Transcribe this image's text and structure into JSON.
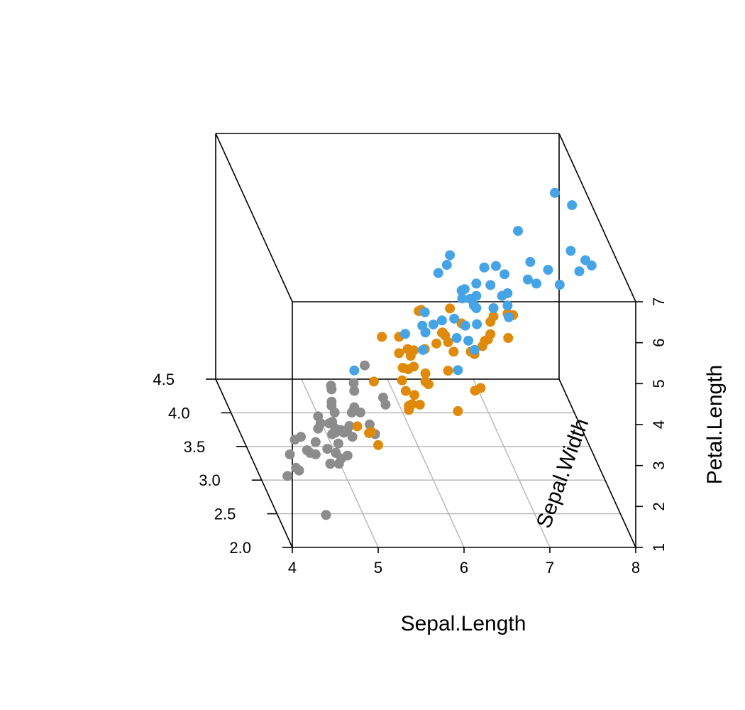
{
  "chart_data": {
    "type": "scatter",
    "projection": "3d",
    "x_label": "Sepal.Length",
    "y_label": "Sepal.Width",
    "z_label": "Petal.Length",
    "xlim": [
      4,
      8
    ],
    "ylim": [
      2.0,
      4.5
    ],
    "zlim": [
      1,
      7
    ],
    "x_ticks": [
      "4",
      "5",
      "6",
      "7",
      "8"
    ],
    "y_ticks": [
      "2.0",
      "2.5",
      "3.0",
      "3.5",
      "4.0",
      "4.5"
    ],
    "z_ticks": [
      "1",
      "2",
      "3",
      "4",
      "5",
      "6",
      "7"
    ],
    "grid": "floor",
    "series": [
      {
        "color": "#8c8c8c",
        "points": [
          {
            "x": 5.1,
            "y": 3.5,
            "z": 1.4
          },
          {
            "x": 4.9,
            "y": 3.0,
            "z": 1.4
          },
          {
            "x": 4.7,
            "y": 3.2,
            "z": 1.3
          },
          {
            "x": 4.6,
            "y": 3.1,
            "z": 1.5
          },
          {
            "x": 5.0,
            "y": 3.6,
            "z": 1.4
          },
          {
            "x": 5.4,
            "y": 3.9,
            "z": 1.7
          },
          {
            "x": 4.6,
            "y": 3.4,
            "z": 1.4
          },
          {
            "x": 5.0,
            "y": 3.4,
            "z": 1.5
          },
          {
            "x": 4.4,
            "y": 2.9,
            "z": 1.4
          },
          {
            "x": 4.9,
            "y": 3.1,
            "z": 1.5
          },
          {
            "x": 5.4,
            "y": 3.7,
            "z": 1.5
          },
          {
            "x": 4.8,
            "y": 3.4,
            "z": 1.6
          },
          {
            "x": 4.8,
            "y": 3.0,
            "z": 1.4
          },
          {
            "x": 4.3,
            "y": 3.0,
            "z": 1.1
          },
          {
            "x": 5.8,
            "y": 4.0,
            "z": 1.2
          },
          {
            "x": 5.7,
            "y": 4.4,
            "z": 1.5
          },
          {
            "x": 5.4,
            "y": 3.9,
            "z": 1.3
          },
          {
            "x": 5.1,
            "y": 3.5,
            "z": 1.4
          },
          {
            "x": 5.7,
            "y": 3.8,
            "z": 1.7
          },
          {
            "x": 5.1,
            "y": 3.8,
            "z": 1.5
          },
          {
            "x": 5.4,
            "y": 3.4,
            "z": 1.7
          },
          {
            "x": 5.1,
            "y": 3.7,
            "z": 1.5
          },
          {
            "x": 4.6,
            "y": 3.6,
            "z": 1.0
          },
          {
            "x": 5.1,
            "y": 3.3,
            "z": 1.7
          },
          {
            "x": 4.8,
            "y": 3.4,
            "z": 1.9
          },
          {
            "x": 5.0,
            "y": 3.0,
            "z": 1.6
          },
          {
            "x": 5.0,
            "y": 3.4,
            "z": 1.6
          },
          {
            "x": 5.2,
            "y": 3.5,
            "z": 1.5
          },
          {
            "x": 5.2,
            "y": 3.4,
            "z": 1.4
          },
          {
            "x": 4.7,
            "y": 3.2,
            "z": 1.6
          },
          {
            "x": 4.8,
            "y": 3.1,
            "z": 1.6
          },
          {
            "x": 5.4,
            "y": 3.4,
            "z": 1.5
          },
          {
            "x": 5.2,
            "y": 4.1,
            "z": 1.5
          },
          {
            "x": 5.5,
            "y": 4.2,
            "z": 1.4
          },
          {
            "x": 4.9,
            "y": 3.1,
            "z": 1.5
          },
          {
            "x": 5.0,
            "y": 3.2,
            "z": 1.2
          },
          {
            "x": 5.5,
            "y": 3.5,
            "z": 1.3
          },
          {
            "x": 4.9,
            "y": 3.6,
            "z": 1.4
          },
          {
            "x": 4.4,
            "y": 3.0,
            "z": 1.3
          },
          {
            "x": 5.1,
            "y": 3.4,
            "z": 1.5
          },
          {
            "x": 5.0,
            "y": 3.5,
            "z": 1.3
          },
          {
            "x": 4.5,
            "y": 2.3,
            "z": 1.3
          },
          {
            "x": 4.4,
            "y": 3.2,
            "z": 1.3
          },
          {
            "x": 5.0,
            "y": 3.5,
            "z": 1.6
          },
          {
            "x": 5.1,
            "y": 3.8,
            "z": 1.9
          },
          {
            "x": 4.8,
            "y": 3.0,
            "z": 1.4
          },
          {
            "x": 5.1,
            "y": 3.8,
            "z": 1.6
          },
          {
            "x": 4.6,
            "y": 3.2,
            "z": 1.4
          },
          {
            "x": 5.3,
            "y": 3.7,
            "z": 1.5
          },
          {
            "x": 5.0,
            "y": 3.3,
            "z": 1.4
          }
        ]
      },
      {
        "color": "#e08a0b",
        "points": [
          {
            "x": 7.0,
            "y": 3.2,
            "z": 4.7
          },
          {
            "x": 6.4,
            "y": 3.2,
            "z": 4.5
          },
          {
            "x": 6.9,
            "y": 3.1,
            "z": 4.9
          },
          {
            "x": 5.5,
            "y": 2.3,
            "z": 4.0
          },
          {
            "x": 6.5,
            "y": 2.8,
            "z": 4.6
          },
          {
            "x": 5.7,
            "y": 2.8,
            "z": 4.5
          },
          {
            "x": 6.3,
            "y": 3.3,
            "z": 4.7
          },
          {
            "x": 4.9,
            "y": 2.4,
            "z": 3.3
          },
          {
            "x": 6.6,
            "y": 2.9,
            "z": 4.6
          },
          {
            "x": 5.2,
            "y": 2.7,
            "z": 3.9
          },
          {
            "x": 5.0,
            "y": 2.0,
            "z": 3.5
          },
          {
            "x": 5.9,
            "y": 3.0,
            "z": 4.2
          },
          {
            "x": 6.0,
            "y": 2.2,
            "z": 4.0
          },
          {
            "x": 6.1,
            "y": 2.9,
            "z": 4.7
          },
          {
            "x": 5.6,
            "y": 2.9,
            "z": 3.6
          },
          {
            "x": 6.7,
            "y": 3.1,
            "z": 4.4
          },
          {
            "x": 5.6,
            "y": 3.0,
            "z": 4.5
          },
          {
            "x": 5.8,
            "y": 2.7,
            "z": 4.1
          },
          {
            "x": 6.2,
            "y": 2.2,
            "z": 4.5
          },
          {
            "x": 5.6,
            "y": 2.5,
            "z": 3.9
          },
          {
            "x": 5.9,
            "y": 3.2,
            "z": 4.8
          },
          {
            "x": 6.1,
            "y": 2.8,
            "z": 4.0
          },
          {
            "x": 6.3,
            "y": 2.5,
            "z": 4.9
          },
          {
            "x": 6.1,
            "y": 2.8,
            "z": 4.7
          },
          {
            "x": 6.4,
            "y": 2.9,
            "z": 4.3
          },
          {
            "x": 6.6,
            "y": 3.0,
            "z": 4.4
          },
          {
            "x": 6.8,
            "y": 2.8,
            "z": 4.8
          },
          {
            "x": 6.7,
            "y": 3.0,
            "z": 5.0
          },
          {
            "x": 6.0,
            "y": 2.9,
            "z": 4.5
          },
          {
            "x": 5.7,
            "y": 2.6,
            "z": 3.5
          },
          {
            "x": 5.5,
            "y": 2.4,
            "z": 3.8
          },
          {
            "x": 5.5,
            "y": 2.4,
            "z": 3.7
          },
          {
            "x": 5.8,
            "y": 2.7,
            "z": 3.9
          },
          {
            "x": 6.0,
            "y": 2.7,
            "z": 5.1
          },
          {
            "x": 5.4,
            "y": 3.0,
            "z": 4.5
          },
          {
            "x": 6.0,
            "y": 3.4,
            "z": 4.5
          },
          {
            "x": 6.7,
            "y": 3.1,
            "z": 4.7
          },
          {
            "x": 6.3,
            "y": 2.3,
            "z": 4.4
          },
          {
            "x": 5.6,
            "y": 3.0,
            "z": 4.1
          },
          {
            "x": 5.5,
            "y": 2.5,
            "z": 4.0
          },
          {
            "x": 5.5,
            "y": 2.6,
            "z": 4.4
          },
          {
            "x": 6.1,
            "y": 3.0,
            "z": 4.6
          },
          {
            "x": 5.8,
            "y": 2.6,
            "z": 4.0
          },
          {
            "x": 5.0,
            "y": 2.3,
            "z": 3.3
          },
          {
            "x": 5.6,
            "y": 2.7,
            "z": 4.2
          },
          {
            "x": 5.7,
            "y": 3.0,
            "z": 4.2
          },
          {
            "x": 5.7,
            "y": 2.9,
            "z": 4.2
          },
          {
            "x": 6.2,
            "y": 2.9,
            "z": 4.3
          },
          {
            "x": 5.1,
            "y": 2.5,
            "z": 3.0
          },
          {
            "x": 5.7,
            "y": 2.8,
            "z": 4.1
          }
        ]
      },
      {
        "color": "#46a3e5",
        "points": [
          {
            "x": 6.3,
            "y": 3.3,
            "z": 6.0
          },
          {
            "x": 5.8,
            "y": 2.7,
            "z": 5.1
          },
          {
            "x": 7.1,
            "y": 3.0,
            "z": 5.9
          },
          {
            "x": 6.3,
            "y": 2.9,
            "z": 5.6
          },
          {
            "x": 6.5,
            "y": 3.0,
            "z": 5.8
          },
          {
            "x": 7.6,
            "y": 3.0,
            "z": 6.6
          },
          {
            "x": 4.9,
            "y": 2.5,
            "z": 4.5
          },
          {
            "x": 7.3,
            "y": 2.9,
            "z": 6.3
          },
          {
            "x": 6.7,
            "y": 2.5,
            "z": 5.8
          },
          {
            "x": 7.2,
            "y": 3.6,
            "z": 6.1
          },
          {
            "x": 6.5,
            "y": 3.2,
            "z": 5.1
          },
          {
            "x": 6.4,
            "y": 2.7,
            "z": 5.3
          },
          {
            "x": 6.8,
            "y": 3.0,
            "z": 5.5
          },
          {
            "x": 5.7,
            "y": 2.5,
            "z": 5.0
          },
          {
            "x": 5.8,
            "y": 2.8,
            "z": 5.1
          },
          {
            "x": 6.4,
            "y": 3.2,
            "z": 5.3
          },
          {
            "x": 6.5,
            "y": 3.0,
            "z": 5.5
          },
          {
            "x": 7.7,
            "y": 3.8,
            "z": 6.7
          },
          {
            "x": 7.7,
            "y": 2.6,
            "z": 6.9
          },
          {
            "x": 6.0,
            "y": 2.2,
            "z": 5.0
          },
          {
            "x": 6.9,
            "y": 3.2,
            "z": 5.7
          },
          {
            "x": 5.6,
            "y": 2.8,
            "z": 4.9
          },
          {
            "x": 7.7,
            "y": 2.8,
            "z": 6.7
          },
          {
            "x": 6.3,
            "y": 2.7,
            "z": 4.9
          },
          {
            "x": 6.7,
            "y": 3.3,
            "z": 5.7
          },
          {
            "x": 7.2,
            "y": 3.2,
            "z": 6.0
          },
          {
            "x": 6.2,
            "y": 2.8,
            "z": 4.8
          },
          {
            "x": 6.1,
            "y": 3.0,
            "z": 4.9
          },
          {
            "x": 6.4,
            "y": 2.8,
            "z": 5.6
          },
          {
            "x": 7.2,
            "y": 3.0,
            "z": 5.8
          },
          {
            "x": 7.4,
            "y": 2.8,
            "z": 6.1
          },
          {
            "x": 7.9,
            "y": 3.8,
            "z": 6.4
          },
          {
            "x": 6.4,
            "y": 2.8,
            "z": 5.6
          },
          {
            "x": 6.3,
            "y": 2.8,
            "z": 5.1
          },
          {
            "x": 6.1,
            "y": 2.6,
            "z": 5.6
          },
          {
            "x": 7.7,
            "y": 3.0,
            "z": 6.1
          },
          {
            "x": 6.3,
            "y": 3.4,
            "z": 5.6
          },
          {
            "x": 6.4,
            "y": 3.1,
            "z": 5.5
          },
          {
            "x": 6.0,
            "y": 3.0,
            "z": 4.8
          },
          {
            "x": 6.9,
            "y": 3.1,
            "z": 5.4
          },
          {
            "x": 6.7,
            "y": 3.1,
            "z": 5.6
          },
          {
            "x": 6.9,
            "y": 3.1,
            "z": 5.1
          },
          {
            "x": 5.8,
            "y": 2.7,
            "z": 5.1
          },
          {
            "x": 6.8,
            "y": 3.2,
            "z": 5.9
          },
          {
            "x": 6.7,
            "y": 3.3,
            "z": 5.7
          },
          {
            "x": 6.7,
            "y": 3.0,
            "z": 5.2
          },
          {
            "x": 6.3,
            "y": 2.5,
            "z": 5.0
          },
          {
            "x": 6.5,
            "y": 3.0,
            "z": 5.2
          },
          {
            "x": 6.2,
            "y": 3.4,
            "z": 5.4
          },
          {
            "x": 5.9,
            "y": 3.0,
            "z": 5.1
          }
        ]
      }
    ]
  }
}
